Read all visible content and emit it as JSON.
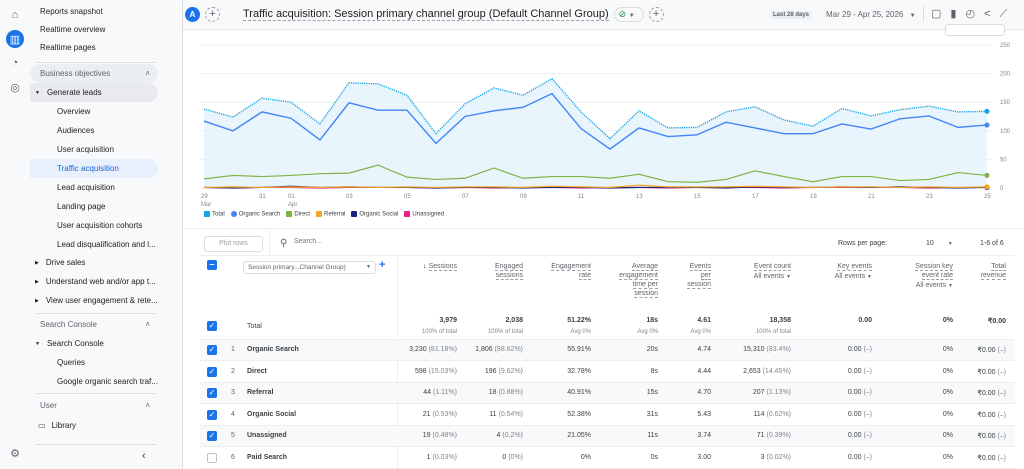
{
  "rail": {
    "items": [
      {
        "icon": "home-icon"
      },
      {
        "icon": "reports-icon",
        "active": true
      },
      {
        "icon": "explore-icon"
      },
      {
        "icon": "advertising-icon"
      }
    ],
    "settings_icon": "gear-icon"
  },
  "sidebar": {
    "top_items": [
      "Reports snapshot",
      "Realtime overview",
      "Realtime pages"
    ],
    "business_header": "Business objectives",
    "generate_leads": "Generate leads",
    "sub_items": [
      "Overview",
      "Audiences",
      "User acquisition",
      "Traffic acquisition",
      "Lead acquisition",
      "Landing page",
      "User acquisition cohorts",
      "Lead disqualification and l..."
    ],
    "selected": "Traffic acquisition",
    "collapsed": [
      "Drive sales",
      "Understand web and/or app t...",
      "View user engagement & rete..."
    ],
    "search_console_header": "Search Console",
    "search_console": "Search Console",
    "sc_items": [
      "Queries",
      "Google organic search traf..."
    ],
    "user_header": "User",
    "library": "Library"
  },
  "header": {
    "avatar": "A",
    "title": "Traffic acquisition: Session primary channel group (Default Channel Group)",
    "date_label": "Last 28 days",
    "date_range": "Mar 29 - Apr 25, 2026",
    "status_color": "#1e8e3e"
  },
  "chart_data": {
    "type": "line",
    "x": [
      "Mar 29",
      "Mar 30",
      "Mar 31",
      "Apr 01",
      "Apr 02",
      "Apr 03",
      "Apr 04",
      "Apr 05",
      "Apr 06",
      "Apr 07",
      "Apr 08",
      "Apr 09",
      "Apr 10",
      "Apr 11",
      "Apr 12",
      "Apr 13",
      "Apr 14",
      "Apr 15",
      "Apr 16",
      "Apr 17",
      "Apr 18",
      "Apr 19",
      "Apr 20",
      "Apr 21",
      "Apr 22",
      "Apr 23",
      "Apr 24",
      "Apr 25"
    ],
    "xtick_labels": [
      {
        "day": "29",
        "month": "Mar"
      },
      {
        "day": "31"
      },
      {
        "day": "01",
        "month": "Apr"
      },
      {
        "day": "03"
      },
      {
        "day": "05"
      },
      {
        "day": "07"
      },
      {
        "day": "09"
      },
      {
        "day": "11"
      },
      {
        "day": "13"
      },
      {
        "day": "15"
      },
      {
        "day": "17"
      },
      {
        "day": "19"
      },
      {
        "day": "21"
      },
      {
        "day": "23"
      },
      {
        "day": "25"
      }
    ],
    "yticks": [
      "0",
      "50",
      "100",
      "150",
      "200",
      "250"
    ],
    "ylim": [
      0,
      250
    ],
    "grid": true,
    "legend_position": "bottom-left",
    "series": [
      {
        "name": "Total",
        "color": "#12a4e6",
        "style": "dotted-area",
        "values": [
          138,
          124,
          157,
          150,
          112,
          184,
          182,
          162,
          95,
          147,
          175,
          162,
          191,
          133,
          86,
          135,
          105,
          106,
          133,
          142,
          119,
          108,
          139,
          126,
          137,
          143,
          133,
          134
        ]
      },
      {
        "name": "Organic Search",
        "color": "#4285f4",
        "values": [
          117,
          100,
          133,
          122,
          84,
          149,
          136,
          136,
          78,
          125,
          135,
          141,
          165,
          104,
          68,
          105,
          90,
          93,
          115,
          105,
          95,
          95,
          112,
          103,
          121,
          126,
          106,
          110
        ]
      },
      {
        "name": "Direct",
        "color": "#7cb342",
        "values": [
          16,
          22,
          20,
          22,
          25,
          26,
          40,
          19,
          15,
          17,
          35,
          17,
          20,
          20,
          17,
          24,
          11,
          10,
          15,
          30,
          20,
          11,
          20,
          20,
          13,
          15,
          27,
          22
        ]
      },
      {
        "name": "Referral",
        "color": "#f6a623",
        "values": [
          1,
          2,
          1,
          2,
          1,
          2,
          1,
          2,
          1,
          2,
          2,
          1,
          3,
          2,
          1,
          5,
          2,
          2,
          2,
          3,
          2,
          1,
          2,
          2,
          1,
          2,
          1,
          2
        ]
      },
      {
        "name": "Organic Social",
        "color": "#1a237e",
        "values": [
          1,
          0,
          1,
          3,
          1,
          2,
          1,
          1,
          0,
          1,
          1,
          0,
          1,
          1,
          0,
          1,
          1,
          1,
          0,
          2,
          1,
          1,
          2,
          1,
          2,
          1,
          0,
          1
        ]
      },
      {
        "name": "Unassigned",
        "color": "#e91e8c",
        "values": [
          1,
          0,
          1,
          1,
          0,
          1,
          1,
          1,
          0,
          1,
          0,
          1,
          1,
          0,
          1,
          1,
          0,
          1,
          1,
          1,
          0,
          1,
          1,
          1,
          1,
          0,
          1,
          1
        ]
      }
    ]
  },
  "toolbar": {
    "plot_rows": "Plot rows",
    "search_placeholder": "Search...",
    "rows_per_page_label": "Rows per page:",
    "rows_per_page": "10",
    "pagination": "1-6 of 6"
  },
  "table": {
    "dimension_select": "Session primary...Channel Group)",
    "columns": [
      {
        "lines": [
          "Sessions"
        ],
        "sort": true
      },
      {
        "lines": [
          "Engaged",
          "sessions"
        ]
      },
      {
        "lines": [
          "Engagement",
          "rate"
        ]
      },
      {
        "lines": [
          "Average",
          "engagement",
          "time per",
          "session"
        ]
      },
      {
        "lines": [
          "Events",
          "per",
          "session"
        ]
      },
      {
        "lines": [
          "Event count"
        ],
        "filter": "All events"
      },
      {
        "lines": [
          "Key events"
        ],
        "filter": "All events"
      },
      {
        "lines": [
          "Session key",
          "event rate"
        ],
        "filter": "All events"
      },
      {
        "lines": [
          "Total",
          "revenue"
        ]
      }
    ],
    "total": {
      "label": "Total",
      "values": [
        [
          "3,979",
          "100% of total"
        ],
        [
          "2,038",
          "100% of total"
        ],
        [
          "51.22%",
          "Avg 0%"
        ],
        [
          "18s",
          "Avg 0%"
        ],
        [
          "4.61",
          "Avg 0%"
        ],
        [
          "18,358",
          "100% of total"
        ],
        [
          "0.00",
          ""
        ],
        [
          "0%",
          ""
        ],
        [
          "₹0.00",
          ""
        ]
      ]
    },
    "rows": [
      {
        "n": "1",
        "name": "Organic Search",
        "checked": true,
        "v": [
          [
            "3,230",
            "(81.18%)"
          ],
          [
            "1,806",
            "(88.62%)"
          ],
          [
            "55.91%",
            ""
          ],
          [
            "20s",
            ""
          ],
          [
            "4.74",
            ""
          ],
          [
            "15,310",
            "(83.4%)"
          ],
          [
            "0.00",
            "(–)"
          ],
          [
            "0%",
            ""
          ],
          [
            "₹0.00",
            "(–)"
          ]
        ]
      },
      {
        "n": "2",
        "name": "Direct",
        "checked": true,
        "v": [
          [
            "598",
            "(15.03%)"
          ],
          [
            "196",
            "(9.62%)"
          ],
          [
            "32.78%",
            ""
          ],
          [
            "8s",
            ""
          ],
          [
            "4.44",
            ""
          ],
          [
            "2,653",
            "(14.45%)"
          ],
          [
            "0.00",
            "(–)"
          ],
          [
            "0%",
            ""
          ],
          [
            "₹0.00",
            "(–)"
          ]
        ]
      },
      {
        "n": "3",
        "name": "Referral",
        "checked": true,
        "v": [
          [
            "44",
            "(1.11%)"
          ],
          [
            "18",
            "(0.88%)"
          ],
          [
            "40.91%",
            ""
          ],
          [
            "15s",
            ""
          ],
          [
            "4.70",
            ""
          ],
          [
            "207",
            "(1.13%)"
          ],
          [
            "0.00",
            "(–)"
          ],
          [
            "0%",
            ""
          ],
          [
            "₹0.00",
            "(–)"
          ]
        ]
      },
      {
        "n": "4",
        "name": "Organic Social",
        "checked": true,
        "v": [
          [
            "21",
            "(0.53%)"
          ],
          [
            "11",
            "(0.54%)"
          ],
          [
            "52.38%",
            ""
          ],
          [
            "31s",
            ""
          ],
          [
            "5.43",
            ""
          ],
          [
            "114",
            "(0.62%)"
          ],
          [
            "0.00",
            "(–)"
          ],
          [
            "0%",
            ""
          ],
          [
            "₹0.00",
            "(–)"
          ]
        ]
      },
      {
        "n": "5",
        "name": "Unassigned",
        "checked": true,
        "v": [
          [
            "19",
            "(0.48%)"
          ],
          [
            "4",
            "(0.2%)"
          ],
          [
            "21.05%",
            ""
          ],
          [
            "11s",
            ""
          ],
          [
            "3.74",
            ""
          ],
          [
            "71",
            "(0.39%)"
          ],
          [
            "0.00",
            "(–)"
          ],
          [
            "0%",
            ""
          ],
          [
            "₹0.00",
            "(–)"
          ]
        ]
      },
      {
        "n": "6",
        "name": "Paid Search",
        "checked": false,
        "v": [
          [
            "1",
            "(0.03%)"
          ],
          [
            "0",
            "(0%)"
          ],
          [
            "0%",
            ""
          ],
          [
            "0s",
            ""
          ],
          [
            "3.00",
            ""
          ],
          [
            "3",
            "(0.02%)"
          ],
          [
            "0.00",
            "(–)"
          ],
          [
            "0%",
            ""
          ],
          [
            "₹0.00",
            "(–)"
          ]
        ]
      }
    ]
  }
}
